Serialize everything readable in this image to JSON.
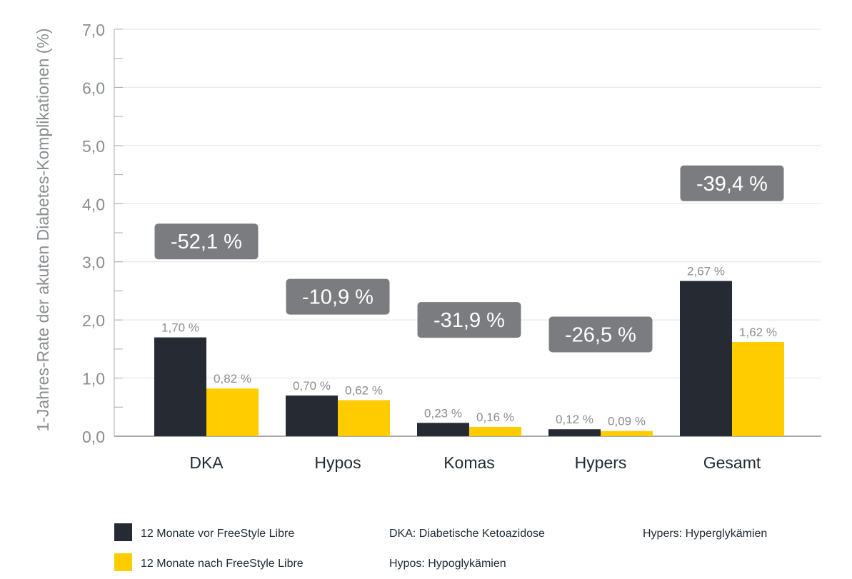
{
  "chart_data": {
    "type": "bar",
    "title": "",
    "ylabel": "1-Jahres-Rate der akuten Diabetes-Komplikationen (%)",
    "xlabel": "",
    "ylim": [
      0,
      7
    ],
    "y_ticks": [
      "0,0",
      "1,0",
      "2,0",
      "3,0",
      "4,0",
      "5,0",
      "6,0",
      "7,0"
    ],
    "categories": [
      "DKA",
      "Hypos",
      "Komas",
      "Hypers",
      "Gesamt"
    ],
    "series": [
      {
        "name": "12 Monate vor FreeStyle Libre",
        "values": [
          1.7,
          0.7,
          0.23,
          0.12,
          2.67
        ],
        "labels": [
          "1,70 %",
          "0,70 %",
          "0,23 %",
          "0,12 %",
          "2,67 %"
        ],
        "color": "#262a33"
      },
      {
        "name": "12 Monate nach FreeStyle Libre",
        "values": [
          0.82,
          0.62,
          0.16,
          0.09,
          1.62
        ],
        "labels": [
          "0,82 %",
          "0,62 %",
          "0,16 %",
          "0,09 %",
          "1,62 %"
        ],
        "color": "#ffcc00"
      }
    ],
    "change_labels": [
      "-52,1 %",
      "-10,9 %",
      "-31,9 %",
      "-26,5 %",
      "-39,4 %"
    ],
    "change_label_y": [
      3.35,
      2.4,
      2.0,
      1.75,
      4.35
    ],
    "grid": true,
    "legend_position": "bottom-left",
    "abbreviations": [
      "DKA: Diabetische Ketoazidose",
      "Hypos: Hypoglykämien",
      "Hypers: Hyperglykämien"
    ],
    "colors": {
      "axis_text": "#8a8d91",
      "category_text": "#1f2933",
      "grid": "#e2e2e2",
      "badge_bg": "#7a7c7f",
      "badge_text": "#ffffff"
    }
  }
}
